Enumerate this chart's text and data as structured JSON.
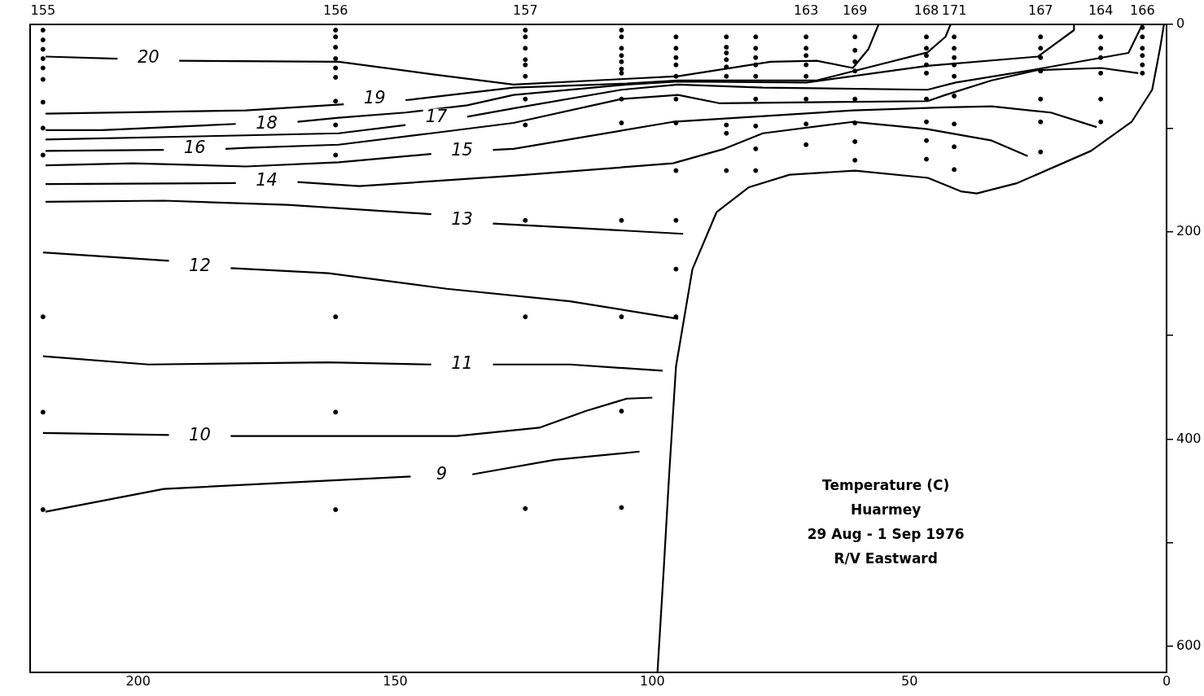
{
  "chart_data": {
    "type": "line",
    "xlim": [
      221,
      0
    ],
    "ylim": [
      625,
      0
    ],
    "xticks": [
      200,
      150,
      100,
      50,
      0
    ],
    "yticks": [
      0,
      {
        "value": 100,
        "label": null
      },
      200,
      {
        "value": 300,
        "label": null
      },
      400,
      {
        "value": 500,
        "label": null
      },
      600
    ],
    "grid": false,
    "legend": false,
    "marker": "none",
    "line_style": "solid",
    "series": [
      {
        "color": "#000000",
        "x": [
          218,
          204,
          198,
          192,
          161,
          143,
          127,
          107,
          95,
          77,
          68,
          61,
          58,
          56
        ],
        "values": [
          31,
          33,
          null,
          35,
          36,
          48,
          58,
          53,
          50,
          36,
          35,
          42,
          24,
          0
        ]
      },
      {
        "color": "#000000",
        "x": [
          218,
          179,
          160,
          154,
          148,
          146,
          127,
          105,
          95,
          68,
          60,
          46.5,
          43,
          42
        ],
        "values": [
          86,
          83,
          77,
          null,
          73,
          72,
          61,
          57,
          54,
          54,
          44,
          27,
          12,
          0
        ]
      },
      {
        "color": "#000000",
        "x": [
          218,
          207,
          181,
          175,
          169,
          161,
          148,
          136,
          127,
          105,
          95,
          70,
          46.5,
          25,
          18,
          18
        ],
        "values": [
          102,
          102,
          96,
          null,
          94,
          90,
          85,
          78,
          68,
          58,
          55,
          56,
          40,
          31,
          5.5,
          0
        ]
      },
      {
        "color": "#000000",
        "x": [
          218,
          179,
          161,
          148,
          142,
          136,
          127,
          106,
          95,
          78.5,
          46.5,
          41,
          25,
          7.4,
          4.7
        ],
        "values": [
          111,
          107,
          105,
          97,
          null,
          89,
          81,
          63,
          58,
          61,
          63,
          56,
          43,
          27.5,
          0
        ]
      },
      {
        "color": "#000000",
        "x": [
          218,
          195,
          189,
          183,
          179,
          161,
          143,
          127,
          106,
          95,
          87,
          46.5,
          43,
          34,
          25,
          12.7,
          5.5
        ],
        "values": [
          122,
          121,
          null,
          120,
          119,
          116,
          105,
          95,
          72,
          68,
          76,
          74,
          68,
          54,
          44,
          42,
          47
        ]
      },
      {
        "color": "#000000",
        "x": [
          218,
          201,
          179,
          161,
          143,
          137,
          131,
          127,
          96,
          61,
          43,
          34,
          22.5,
          13.6
        ],
        "values": [
          136,
          134,
          137,
          133,
          125,
          null,
          121,
          120,
          94,
          83,
          80,
          79,
          85,
          99
        ]
      },
      {
        "color": "#000000",
        "x": [
          218,
          181,
          175,
          169,
          157,
          127,
          96,
          86,
          78.5,
          61,
          46.5,
          34,
          27
        ],
        "values": [
          154,
          153,
          null,
          152,
          156,
          146,
          134,
          120,
          105,
          94,
          101,
          112,
          127
        ]
      },
      {
        "color": "#000000",
        "x": [
          218,
          195,
          171,
          143,
          137,
          131,
          116,
          94
        ],
        "values": [
          171,
          170,
          174,
          183,
          null,
          192,
          196,
          202
        ]
      },
      {
        "color": "#000000",
        "x": [
          218.5,
          194,
          188,
          182,
          163,
          140,
          116,
          95
        ],
        "values": [
          220,
          228,
          null,
          235,
          240,
          255,
          267,
          284
        ]
      },
      {
        "color": "#000000",
        "x": [
          218.5,
          198,
          163,
          143,
          137,
          131,
          116,
          98
        ],
        "values": [
          320,
          328,
          326,
          328,
          null,
          328,
          328,
          334
        ]
      },
      {
        "color": "#000000",
        "x": [
          218.5,
          194,
          188,
          182,
          138,
          122,
          113,
          105,
          100
        ],
        "values": [
          394,
          396,
          null,
          397,
          397,
          389,
          373,
          361,
          360
        ]
      },
      {
        "color": "#000000",
        "x": [
          218,
          195,
          163,
          147,
          141,
          135,
          119,
          102.5
        ],
        "values": [
          470,
          448,
          440,
          436,
          null,
          434,
          420,
          412
        ]
      },
      {
        "color": "#000000",
        "x": [
          99,
          97.8,
          96.7,
          95.4,
          92.2,
          87.5,
          81.2,
          73.3,
          60.6,
          46.4,
          40,
          36.9,
          29,
          14.7,
          6.8,
          2.8,
          1.3,
          0.5
        ],
        "values": [
          625,
          527,
          432,
          330,
          236,
          181,
          157,
          145,
          141,
          148,
          161,
          163,
          153,
          122,
          94,
          63,
          24,
          0
        ]
      },
      {
        "type": "scatter",
        "marker": "circle",
        "color": "#000000",
        "x": [
          218.5,
          218.5,
          218.5,
          218.5,
          218.5,
          218.5,
          218.5,
          218.5,
          218.5,
          218.5,
          218.5,
          218.5,
          161.6,
          161.6,
          161.6,
          161.6,
          161.6,
          161.6,
          161.6,
          161.6,
          161.6,
          161.6,
          161.6,
          161.6,
          124.7,
          124.7,
          124.7,
          124.7,
          124.7,
          124.7,
          124.7,
          124.7,
          124.7,
          124.7,
          124.7,
          106,
          106,
          106,
          106,
          106,
          106,
          106,
          106,
          106,
          106,
          106,
          106,
          106,
          95.4,
          95.4,
          95.4,
          95.4,
          95.4,
          95.4,
          95.4,
          95.4,
          95.4,
          95.4,
          95.4,
          85.6,
          85.6,
          85.6,
          85.6,
          85.6,
          85.6,
          85.6,
          85.6,
          85.6,
          79.9,
          79.9,
          79.9,
          79.9,
          79.9,
          79.9,
          79.9,
          79.9,
          79.9,
          70.1,
          70.1,
          70.1,
          70.1,
          70.1,
          70.1,
          70.1,
          70.1,
          60.6,
          60.6,
          60.6,
          60.6,
          60.6,
          60.6,
          60.6,
          60.6,
          46.7,
          46.7,
          46.7,
          46.7,
          46.7,
          46.7,
          46.7,
          46.7,
          46.7,
          41.3,
          41.3,
          41.3,
          41.3,
          41.3,
          41.3,
          41.3,
          41.3,
          41.3,
          24.5,
          24.5,
          24.5,
          24.5,
          24.5,
          24.5,
          24.5,
          12.8,
          12.8,
          12.8,
          12.8,
          12.8,
          12.8,
          4.7,
          4.7,
          4.7,
          4.7,
          4.7,
          4.7
        ],
        "values": [
          5.5,
          15,
          24,
          33,
          42,
          53,
          75,
          100,
          126,
          282,
          374,
          468,
          5.5,
          12,
          22,
          33,
          42,
          51,
          74,
          97,
          126,
          282,
          374,
          468,
          5.5,
          12,
          23,
          34,
          39,
          50,
          72,
          97,
          189,
          282,
          467,
          5.5,
          12,
          23,
          30,
          36,
          43,
          47,
          72,
          95,
          189,
          282,
          373,
          466,
          12,
          23,
          32,
          39,
          50,
          72,
          95,
          141,
          189,
          236,
          282,
          12,
          22,
          27.5,
          34,
          41,
          50,
          97,
          105,
          141,
          12,
          23,
          32,
          39,
          50,
          72,
          98,
          120,
          141,
          12,
          23,
          30,
          39,
          50,
          72,
          96,
          116,
          12,
          25,
          36,
          45,
          72,
          95,
          113,
          131,
          12,
          23,
          30,
          39,
          47,
          72,
          94,
          112,
          130,
          12,
          23,
          32,
          39,
          50,
          69,
          96,
          118,
          140,
          12,
          23,
          32,
          45,
          72,
          94,
          123,
          12,
          23,
          32,
          47,
          72,
          94,
          3,
          12,
          23,
          30,
          39,
          47
        ]
      }
    ],
    "annotations": [
      {
        "text": "155",
        "x": 218.5,
        "y": 5.5
      },
      {
        "text": "156",
        "x": 161.6,
        "y": 5.5
      },
      {
        "text": "157",
        "x": 124.7,
        "y": 5.5
      },
      {
        "text": "163",
        "x": 70.1,
        "y": 12
      },
      {
        "text": "169",
        "x": 60.6,
        "y": 12
      },
      {
        "text": "168",
        "x": 46.7,
        "y": 12
      },
      {
        "text": "171",
        "x": 41.3,
        "y": 12
      },
      {
        "text": "167",
        "x": 24.5,
        "y": 12
      },
      {
        "text": "164",
        "x": 12.8,
        "y": 12
      },
      {
        "text": "166",
        "x": 4.7,
        "y": 3
      },
      {
        "text": "20",
        "x": 198,
        "y": 33
      },
      {
        "text": "19",
        "x": 154,
        "y": 72
      },
      {
        "text": "18",
        "x": 175,
        "y": 96
      },
      {
        "text": "17",
        "x": 142,
        "y": 90
      },
      {
        "text": "16",
        "x": 189,
        "y": 120
      },
      {
        "text": "15",
        "x": 137,
        "y": 122
      },
      {
        "text": "14",
        "x": 175,
        "y": 151
      },
      {
        "text": "13",
        "x": 137,
        "y": 189
      },
      {
        "text": "12",
        "x": 188,
        "y": 234
      },
      {
        "text": "11",
        "x": 137,
        "y": 328
      },
      {
        "text": "10",
        "x": 188,
        "y": 397
      },
      {
        "text": "9",
        "x": 141,
        "y": 435
      },
      "Temperature (C)",
      "Huarmey",
      "29 Aug - 1 Sep 1976",
      "R/V Eastward"
    ]
  }
}
